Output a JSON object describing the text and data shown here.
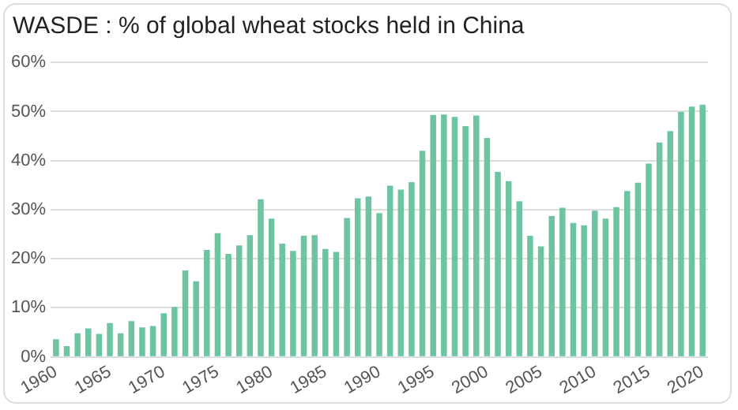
{
  "chart_data": {
    "type": "bar",
    "title": "WASDE : % of global wheat stocks held in China",
    "categories": [
      "1960",
      null,
      null,
      null,
      null,
      "1965",
      null,
      null,
      null,
      null,
      "1970",
      null,
      null,
      null,
      null,
      "1975",
      null,
      null,
      null,
      null,
      "1980",
      null,
      null,
      null,
      null,
      "1985",
      null,
      null,
      null,
      null,
      "1990",
      null,
      null,
      null,
      null,
      "1995",
      null,
      null,
      null,
      null,
      "2000",
      null,
      null,
      null,
      null,
      "2005",
      null,
      null,
      null,
      null,
      "2010",
      null,
      null,
      null,
      null,
      "2015",
      null,
      null,
      null,
      null,
      "2020"
    ],
    "values": [
      3.6,
      2.2,
      4.8,
      5.8,
      4.7,
      6.9,
      4.8,
      7.3,
      6.0,
      6.3,
      8.9,
      10.2,
      17.6,
      15.4,
      21.8,
      25.2,
      21.0,
      22.7,
      24.8,
      32.1,
      28.2,
      23.1,
      21.6,
      24.7,
      24.8,
      22.0,
      21.4,
      28.3,
      32.3,
      32.7,
      29.3,
      34.9,
      34.1,
      35.6,
      42.0,
      49.3,
      49.4,
      48.9,
      47.0,
      49.2,
      44.6,
      37.7,
      35.8,
      31.7,
      24.7,
      22.5,
      28.7,
      30.4,
      27.3,
      26.8,
      29.8,
      28.2,
      30.5,
      33.8,
      35.5,
      39.4,
      43.7,
      46.0,
      49.9,
      51.0,
      51.4
    ],
    "color": "#6cc4a0",
    "ylim": [
      0,
      60
    ],
    "yticks": [
      {
        "value": 0,
        "label": "0%"
      },
      {
        "value": 10,
        "label": "10%"
      },
      {
        "value": 20,
        "label": "20%"
      },
      {
        "value": 30,
        "label": "30%"
      },
      {
        "value": 40,
        "label": "40%"
      },
      {
        "value": 50,
        "label": "50%"
      },
      {
        "value": 60,
        "label": "60%"
      }
    ],
    "grid": "y"
  }
}
